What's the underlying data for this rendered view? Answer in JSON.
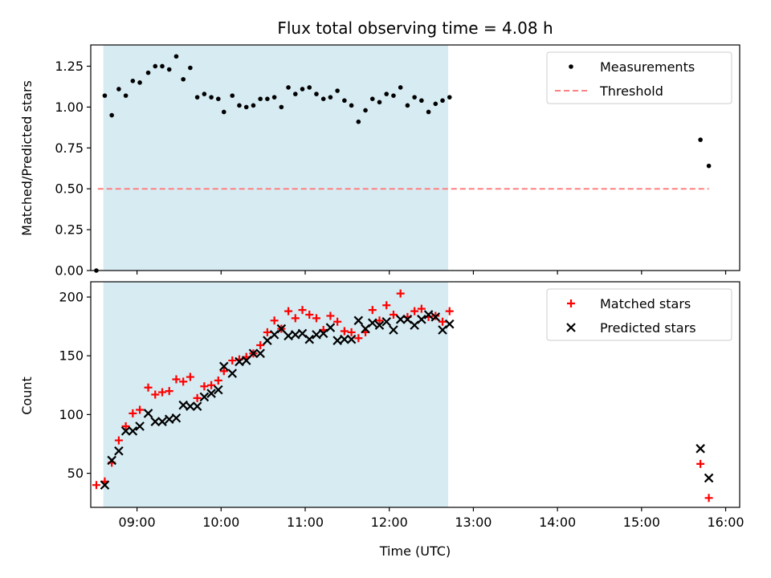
{
  "chart_data": {
    "title": "Flux total observing time = 4.08 h",
    "xlabel": "Time (UTC)",
    "xlim": [
      "08:27",
      "16:10"
    ],
    "xticks": [
      "09:00",
      "10:00",
      "11:00",
      "12:00",
      "13:00",
      "14:00",
      "15:00",
      "16:00"
    ],
    "shaded_span": {
      "start": "08:36",
      "end": "12:42",
      "color": "#add8e6"
    },
    "panels": [
      {
        "type": "scatter",
        "ylabel": "Matched/Predicted stars",
        "ylim": [
          0,
          1.38
        ],
        "yticks": [
          "0.00",
          "0.25",
          "0.50",
          "0.75",
          "1.00",
          "1.25"
        ],
        "legend_position": "top-right",
        "series": [
          {
            "name": "Measurements",
            "marker": "dot",
            "color": "#000000",
            "points": [
              [
                "08:31",
                0.0
              ],
              [
                "08:37",
                1.07
              ],
              [
                "08:42",
                0.95
              ],
              [
                "08:47",
                1.11
              ],
              [
                "08:52",
                1.07
              ],
              [
                "08:57",
                1.16
              ],
              [
                "09:02",
                1.15
              ],
              [
                "09:08",
                1.21
              ],
              [
                "09:13",
                1.25
              ],
              [
                "09:18",
                1.25
              ],
              [
                "09:23",
                1.23
              ],
              [
                "09:28",
                1.31
              ],
              [
                "09:33",
                1.17
              ],
              [
                "09:38",
                1.24
              ],
              [
                "09:43",
                1.06
              ],
              [
                "09:48",
                1.08
              ],
              [
                "09:53",
                1.06
              ],
              [
                "09:58",
                1.05
              ],
              [
                "10:02",
                0.97
              ],
              [
                "10:08",
                1.07
              ],
              [
                "10:13",
                1.01
              ],
              [
                "10:18",
                1.0
              ],
              [
                "10:23",
                1.01
              ],
              [
                "10:28",
                1.05
              ],
              [
                "10:33",
                1.05
              ],
              [
                "10:38",
                1.06
              ],
              [
                "10:43",
                1.0
              ],
              [
                "10:48",
                1.12
              ],
              [
                "10:53",
                1.08
              ],
              [
                "10:58",
                1.11
              ],
              [
                "11:03",
                1.12
              ],
              [
                "11:08",
                1.08
              ],
              [
                "11:13",
                1.05
              ],
              [
                "11:18",
                1.06
              ],
              [
                "11:23",
                1.1
              ],
              [
                "11:28",
                1.04
              ],
              [
                "11:33",
                1.01
              ],
              [
                "11:38",
                0.91
              ],
              [
                "11:43",
                0.98
              ],
              [
                "11:48",
                1.05
              ],
              [
                "11:53",
                1.03
              ],
              [
                "11:58",
                1.08
              ],
              [
                "12:03",
                1.07
              ],
              [
                "12:08",
                1.12
              ],
              [
                "12:13",
                1.01
              ],
              [
                "12:18",
                1.06
              ],
              [
                "12:23",
                1.04
              ],
              [
                "12:28",
                0.97
              ],
              [
                "12:33",
                1.02
              ],
              [
                "12:38",
                1.04
              ],
              [
                "12:43",
                1.06
              ],
              [
                "15:42",
                0.8
              ],
              [
                "15:48",
                0.64
              ]
            ]
          },
          {
            "name": "Threshold",
            "marker": "dashed-line",
            "color": "#ff8080",
            "points": [
              [
                "08:32",
                0.5
              ],
              [
                "15:48",
                0.5
              ]
            ]
          }
        ]
      },
      {
        "type": "scatter",
        "ylabel": "Count",
        "ylim": [
          21,
          213
        ],
        "yticks": [
          "50",
          "100",
          "150",
          "200"
        ],
        "legend_position": "top-right",
        "series": [
          {
            "name": "Matched stars",
            "marker": "plus",
            "color": "#ff0000",
            "points": [
              [
                "08:31",
                40
              ],
              [
                "08:37",
                43
              ],
              [
                "08:42",
                59
              ],
              [
                "08:47",
                78
              ],
              [
                "08:52",
                90
              ],
              [
                "08:57",
                101
              ],
              [
                "09:02",
                104
              ],
              [
                "09:08",
                123
              ],
              [
                "09:13",
                117
              ],
              [
                "09:18",
                119
              ],
              [
                "09:23",
                120
              ],
              [
                "09:28",
                130
              ],
              [
                "09:33",
                128
              ],
              [
                "09:38",
                132
              ],
              [
                "09:43",
                114
              ],
              [
                "09:48",
                124
              ],
              [
                "09:53",
                125
              ],
              [
                "09:58",
                129
              ],
              [
                "10:02",
                137
              ],
              [
                "10:08",
                146
              ],
              [
                "10:13",
                147
              ],
              [
                "10:18",
                149
              ],
              [
                "10:23",
                152
              ],
              [
                "10:28",
                159
              ],
              [
                "10:33",
                170
              ],
              [
                "10:38",
                180
              ],
              [
                "10:43",
                173
              ],
              [
                "10:48",
                188
              ],
              [
                "10:53",
                182
              ],
              [
                "10:58",
                189
              ],
              [
                "11:03",
                185
              ],
              [
                "11:08",
                182
              ],
              [
                "11:13",
                172
              ],
              [
                "11:18",
                184
              ],
              [
                "11:23",
                179
              ],
              [
                "11:28",
                171
              ],
              [
                "11:33",
                170
              ],
              [
                "11:38",
                165
              ],
              [
                "11:43",
                170
              ],
              [
                "11:48",
                189
              ],
              [
                "11:53",
                180
              ],
              [
                "11:58",
                193
              ],
              [
                "12:03",
                185
              ],
              [
                "12:08",
                203
              ],
              [
                "12:13",
                183
              ],
              [
                "12:18",
                188
              ],
              [
                "12:23",
                190
              ],
              [
                "12:28",
                183
              ],
              [
                "12:33",
                184
              ],
              [
                "12:38",
                179
              ],
              [
                "12:43",
                188
              ],
              [
                "15:42",
                58
              ],
              [
                "15:48",
                29
              ]
            ]
          },
          {
            "name": "Predicted stars",
            "marker": "x",
            "color": "#000000",
            "points": [
              [
                "08:37",
                40
              ],
              [
                "08:42",
                61
              ],
              [
                "08:47",
                69
              ],
              [
                "08:52",
                86
              ],
              [
                "08:57",
                86
              ],
              [
                "09:02",
                90
              ],
              [
                "09:08",
                101
              ],
              [
                "09:13",
                94
              ],
              [
                "09:18",
                94
              ],
              [
                "09:23",
                96
              ],
              [
                "09:28",
                97
              ],
              [
                "09:33",
                108
              ],
              [
                "09:38",
                107
              ],
              [
                "09:43",
                107
              ],
              [
                "09:48",
                115
              ],
              [
                "09:53",
                118
              ],
              [
                "09:58",
                121
              ],
              [
                "10:02",
                141
              ],
              [
                "10:08",
                135
              ],
              [
                "10:13",
                145
              ],
              [
                "10:18",
                146
              ],
              [
                "10:23",
                152
              ],
              [
                "10:28",
                152
              ],
              [
                "10:33",
                163
              ],
              [
                "10:38",
                168
              ],
              [
                "10:43",
                173
              ],
              [
                "10:48",
                167
              ],
              [
                "10:53",
                168
              ],
              [
                "10:58",
                169
              ],
              [
                "11:03",
                164
              ],
              [
                "11:08",
                168
              ],
              [
                "11:13",
                169
              ],
              [
                "11:18",
                174
              ],
              [
                "11:23",
                163
              ],
              [
                "11:28",
                164
              ],
              [
                "11:33",
                164
              ],
              [
                "11:38",
                180
              ],
              [
                "11:43",
                173
              ],
              [
                "11:48",
                178
              ],
              [
                "11:53",
                176
              ],
              [
                "11:58",
                179
              ],
              [
                "12:03",
                172
              ],
              [
                "12:08",
                181
              ],
              [
                "12:13",
                181
              ],
              [
                "12:18",
                176
              ],
              [
                "12:23",
                181
              ],
              [
                "12:28",
                185
              ],
              [
                "12:33",
                183
              ],
              [
                "12:38",
                172
              ],
              [
                "12:43",
                177
              ],
              [
                "15:42",
                71
              ],
              [
                "15:48",
                46
              ]
            ]
          }
        ]
      }
    ]
  }
}
